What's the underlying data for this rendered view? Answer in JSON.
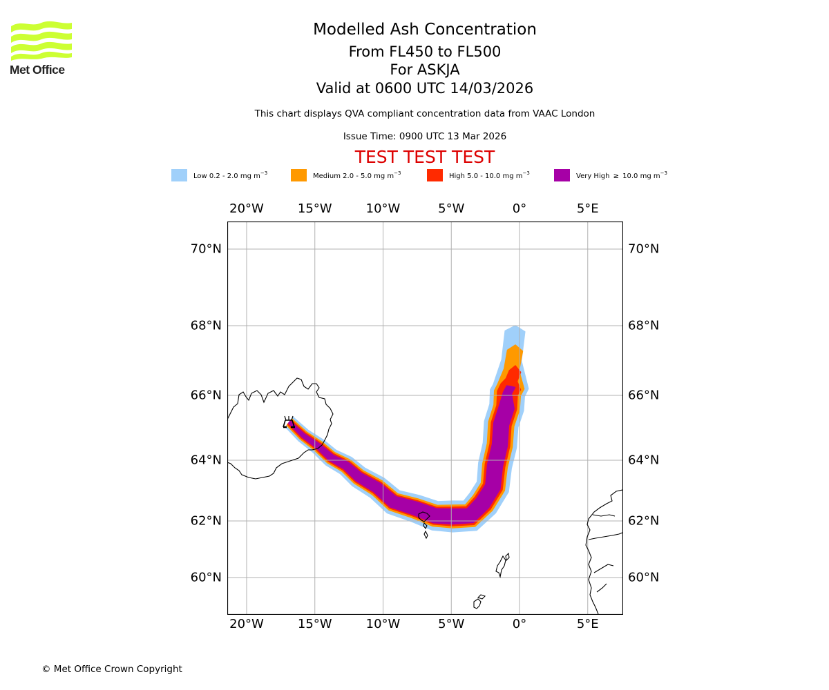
{
  "logo": {
    "name": "Met Office",
    "icon": "met-office-waves-logo",
    "color": "#ccff33"
  },
  "title": {
    "main": "Modelled Ash Concentration",
    "levels": "From FL450 to FL500",
    "volcano": "For ASKJA",
    "valid": "Valid at 0600 UTC 14/03/2026",
    "compliance": "This chart displays QVA compliant concentration data from VAAC London",
    "issue": "Issue Time: 0900 UTC 13 Mar 2026",
    "test_banner": "TEST TEST TEST"
  },
  "legend": [
    {
      "label": "Low 0.2 - 2.0 mg m",
      "unit_exp": "−3",
      "color": "#a0d0fa"
    },
    {
      "label": "Medium 2.0 - 5.0 mg m",
      "unit_exp": "−3",
      "color": "#ff9900"
    },
    {
      "label": "High 5.0 - 10.0 mg m",
      "unit_exp": "−3",
      "color": "#ff2a00"
    },
    {
      "label": "Very High  ≥  10.0 mg m",
      "unit_exp": "−3",
      "color": "#a600a6"
    }
  ],
  "chart_data": {
    "type": "map",
    "title": "Modelled Ash Concentration",
    "extent": {
      "lon": [
        -21.3,
        7.4
      ],
      "lat": [
        59.0,
        70.7
      ]
    },
    "grid": true,
    "lon_ticks": [
      "20°W",
      "15°W",
      "10°W",
      "5°W",
      "0°",
      "5°E"
    ],
    "lon_tick_values": [
      -20,
      -15,
      -10,
      -5,
      0,
      5
    ],
    "lat_ticks": [
      "70°N",
      "68°N",
      "66°N",
      "64°N",
      "62°N",
      "60°N"
    ],
    "lat_tick_values": [
      70,
      68,
      66,
      64,
      62,
      60
    ],
    "volcano": {
      "name": "ASKJA",
      "lon": -16.7,
      "lat": 65.1,
      "icon": "volcano-icon"
    },
    "ash_plume": {
      "description": "Plume extends SE from Askja to south of Faroe Islands, then curves north along ~0°-1°W to ~67.5°N",
      "centerline": [
        [
          -16.7,
          65.0
        ],
        [
          -15.0,
          64.6
        ],
        [
          -13.0,
          64.0
        ],
        [
          -11.0,
          63.4
        ],
        [
          -9.0,
          62.8
        ],
        [
          -7.0,
          62.4
        ],
        [
          -5.0,
          62.1
        ],
        [
          -3.0,
          62.3
        ],
        [
          -2.0,
          63.0
        ],
        [
          -1.5,
          64.0
        ],
        [
          -1.0,
          65.0
        ],
        [
          -0.8,
          66.0
        ]
      ],
      "levels": [
        {
          "name": "Low",
          "range": "0.2 - 2.0 mg/m3",
          "color": "#a0d0fa",
          "northern_tip_lat": 68.0
        },
        {
          "name": "Medium",
          "range": "2.0 - 5.0 mg/m3",
          "color": "#ff9900",
          "northern_tip_lat": 67.4
        },
        {
          "name": "High",
          "range": "5.0 - 10.0 mg/m3",
          "color": "#ff2a00",
          "northern_tip_lat": 66.8
        },
        {
          "name": "Very High",
          "range": ">= 10.0 mg/m3",
          "color": "#a600a6",
          "northern_tip_lat": 66.2
        }
      ]
    },
    "coastlines": [
      "Iceland",
      "Faroe Islands",
      "Shetland",
      "Orkney",
      "Norway"
    ]
  },
  "footer": {
    "copyright": "© Met Office Crown Copyright"
  }
}
